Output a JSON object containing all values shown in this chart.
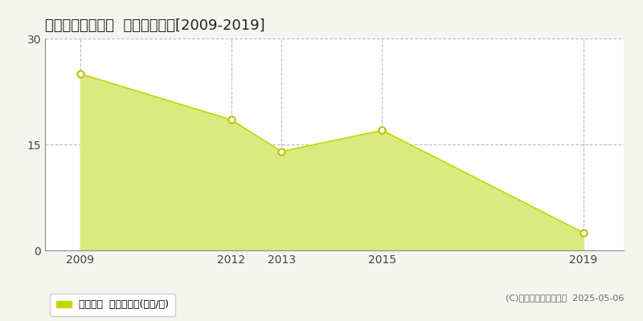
{
  "title": "那珂郡東海村白方  住宅価格推移[2009-2019]",
  "x_values": [
    2009,
    2012,
    2013,
    2015,
    2019
  ],
  "y_values": [
    25.0,
    18.5,
    14.0,
    17.0,
    2.5
  ],
  "line_color": "#c8d400",
  "fill_color": "#d9ea80",
  "marker_edge_color": "#b8c400",
  "marker_face": "#ffffff",
  "ylim": [
    0,
    30
  ],
  "yticks": [
    0,
    15,
    30
  ],
  "legend_label": "住宅価格  平均坪単価(万円/坪)",
  "legend_marker_color": "#c8d400",
  "copyright_text": "(C)土地価格ドットコム  2025-05-06",
  "outer_bg_color": "#f5f5f0",
  "plot_bg_color": "#ffffff",
  "title_fontsize": 13,
  "grid_color": "#bbbbbb",
  "grid_style": "--",
  "x_label_years": [
    2009,
    2012,
    2013,
    2015,
    2019
  ],
  "xlim_left": 2008.3,
  "xlim_right": 2019.8
}
